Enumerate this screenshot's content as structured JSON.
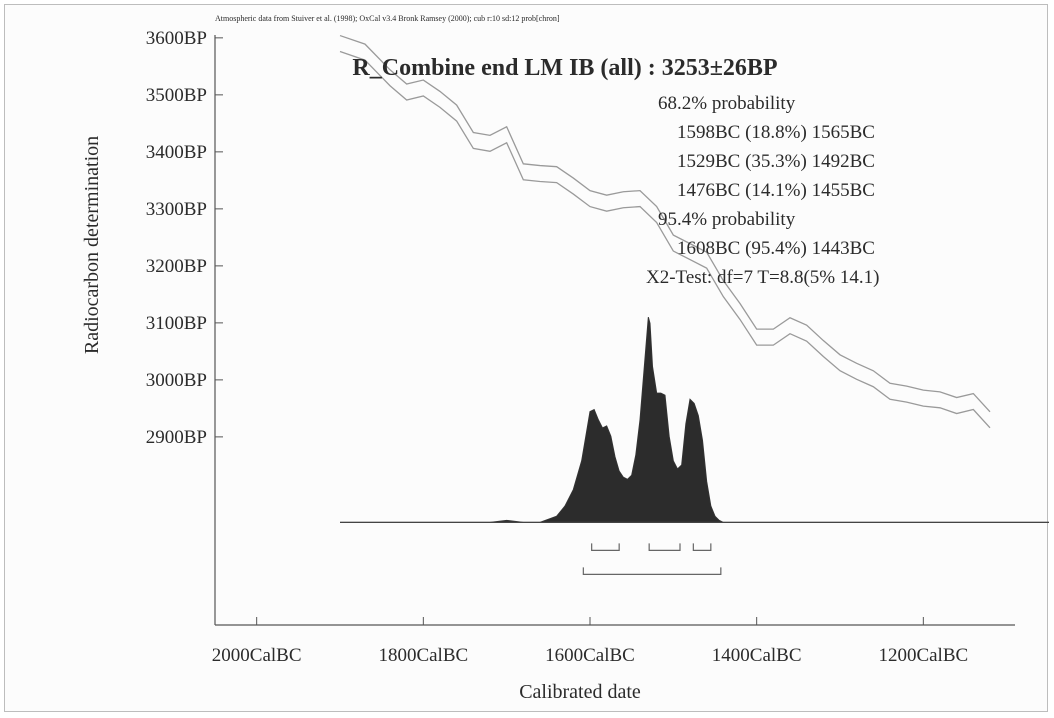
{
  "header_note": "Atmospheric data from Stuiver et al. (1998); OxCal v3.4 Bronk Ramsey (2000); cub r:10 sd:12 prob[chron]",
  "chart_data": {
    "type": "area",
    "title": "R_Combine end LM IB (all) : 3253±26BP",
    "xlabel": "Calibrated date",
    "ylabel": "Radiocarbon determination",
    "x_unit": "CalBC",
    "y_unit": "BP",
    "xlim": [
      2050,
      1090
    ],
    "ylim": [
      2570,
      3605
    ],
    "x_ticks": [
      2000,
      1800,
      1600,
      1400,
      1200
    ],
    "x_tick_labels": [
      "2000CalBC",
      "1800CalBC",
      "1600CalBC",
      "1400CalBC",
      "1200CalBC"
    ],
    "y_ticks": [
      3600,
      3500,
      3400,
      3300,
      3200,
      3100,
      3000,
      2900
    ],
    "y_tick_labels": [
      "3600BP",
      "3500BP",
      "3400BP",
      "3300BP",
      "3200BP",
      "3100BP",
      "3000BP",
      "2900BP"
    ],
    "grid": false,
    "annotations": [
      "68.2% probability",
      "1598BC (18.8%) 1565BC",
      "1529BC (35.3%) 1492BC",
      "1476BC (14.1%) 1455BC",
      "95.4% probability",
      "1608BC (95.4%) 1443BC",
      "X2-Test: df=7 T=8.8(5% 14.1)"
    ],
    "calibration_curve": {
      "color": "#9a9a9a",
      "points": [
        [
          1900,
          3590
        ],
        [
          1870,
          3575
        ],
        [
          1840,
          3530
        ],
        [
          1820,
          3505
        ],
        [
          1800,
          3512
        ],
        [
          1780,
          3492
        ],
        [
          1760,
          3468
        ],
        [
          1740,
          3420
        ],
        [
          1720,
          3415
        ],
        [
          1700,
          3430
        ],
        [
          1680,
          3365
        ],
        [
          1660,
          3362
        ],
        [
          1640,
          3360
        ],
        [
          1620,
          3340
        ],
        [
          1600,
          3318
        ],
        [
          1580,
          3310
        ],
        [
          1560,
          3316
        ],
        [
          1540,
          3318
        ],
        [
          1520,
          3290
        ],
        [
          1500,
          3240
        ],
        [
          1480,
          3225
        ],
        [
          1460,
          3210
        ],
        [
          1440,
          3160
        ],
        [
          1420,
          3120
        ],
        [
          1400,
          3075
        ],
        [
          1380,
          3075
        ],
        [
          1360,
          3095
        ],
        [
          1340,
          3082
        ],
        [
          1320,
          3055
        ],
        [
          1300,
          3030
        ],
        [
          1280,
          3015
        ],
        [
          1260,
          3002
        ],
        [
          1240,
          2980
        ],
        [
          1220,
          2975
        ],
        [
          1200,
          2968
        ],
        [
          1180,
          2965
        ],
        [
          1160,
          2955
        ],
        [
          1140,
          2962
        ],
        [
          1120,
          2930
        ]
      ],
      "band_halfwidth_bp": 14
    },
    "probability_distribution": {
      "color": "#2c2c2c",
      "baseline_bp": 2750,
      "peak_height_bp": 360,
      "x": [
        1900,
        1720,
        1700,
        1680,
        1660,
        1640,
        1630,
        1620,
        1610,
        1605,
        1600,
        1595,
        1590,
        1585,
        1580,
        1575,
        1570,
        1565,
        1560,
        1555,
        1550,
        1545,
        1540,
        1535,
        1530,
        1528,
        1525,
        1520,
        1515,
        1510,
        1505,
        1500,
        1495,
        1490,
        1485,
        1480,
        1475,
        1470,
        1465,
        1460,
        1455,
        1450,
        1445,
        1440,
        1435,
        1430,
        1000
      ],
      "y": [
        0,
        0,
        0.01,
        0.0,
        0.0,
        0.03,
        0.08,
        0.16,
        0.3,
        0.42,
        0.54,
        0.55,
        0.5,
        0.46,
        0.47,
        0.42,
        0.32,
        0.25,
        0.22,
        0.21,
        0.23,
        0.33,
        0.5,
        0.75,
        1.0,
        0.97,
        0.76,
        0.63,
        0.63,
        0.62,
        0.42,
        0.3,
        0.26,
        0.28,
        0.48,
        0.6,
        0.58,
        0.52,
        0.4,
        0.2,
        0.08,
        0.03,
        0.01,
        0,
        0,
        0,
        0
      ]
    },
    "range_brackets": {
      "level68": [
        [
          1598,
          1565
        ],
        [
          1529,
          1492
        ],
        [
          1476,
          1455
        ]
      ],
      "level95": [
        [
          1608,
          1443
        ]
      ]
    }
  }
}
